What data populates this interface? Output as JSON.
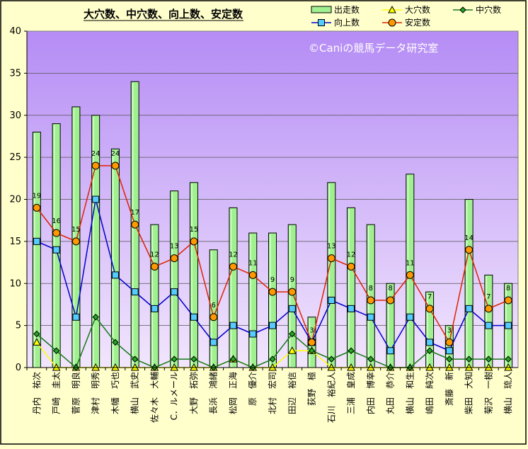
{
  "chart_data": {
    "type": "bar",
    "title": "大穴数、中穴数、向上数、安定数",
    "watermark": "©Caniの競馬データ研究室",
    "ylim": [
      0,
      40
    ],
    "yticks": [
      "0",
      "5",
      "10",
      "15",
      "20",
      "25",
      "30",
      "35",
      "40"
    ],
    "grid": true,
    "legend_position": "top-right",
    "categories": [
      "丹内　祐次",
      "戸崎　圭太",
      "菅原　明良",
      "津村　明秀",
      "木幡　巧也",
      "横山　武史",
      "佐々木　大輔",
      "C．ルメール",
      "大野　拓弥",
      "長浜　鴻緒",
      "松岡　正海",
      "原　優介",
      "北村　宏司",
      "田辺　裕信",
      "荻野　極",
      "石川　裕紀人",
      "三浦　皇成",
      "内田　博幸",
      "丸田　恭介",
      "横山　和生",
      "嶋田　純次",
      "斎藤　新",
      "柴田　大知",
      "菊沢　一樹",
      "横山　琉人"
    ],
    "series": [
      {
        "name": "出走数",
        "kind": "bar",
        "color": "#A0F090",
        "values": [
          28,
          29,
          31,
          30,
          26,
          34,
          17,
          21,
          22,
          14,
          19,
          16,
          16,
          17,
          6,
          22,
          19,
          17,
          10,
          23,
          9,
          5,
          20,
          11,
          10
        ]
      },
      {
        "name": "大穴数",
        "kind": "line",
        "color": "#FFFF00",
        "values": [
          3,
          0,
          0,
          0,
          0,
          0,
          0,
          0,
          0,
          0,
          1,
          0,
          0,
          2,
          2,
          0,
          0,
          0,
          0,
          0,
          0,
          0,
          0,
          0,
          0
        ]
      },
      {
        "name": "中穴数",
        "kind": "line",
        "color": "#1A7A1A",
        "values": [
          4,
          2,
          0,
          6,
          3,
          1,
          0,
          1,
          1,
          0,
          1,
          0,
          1,
          4,
          2,
          1,
          2,
          1,
          0,
          0,
          2,
          1,
          1,
          1,
          1
        ]
      },
      {
        "name": "向上数",
        "kind": "line",
        "color": "#0000CC",
        "values": [
          15,
          14,
          6,
          20,
          11,
          9,
          7,
          9,
          6,
          3,
          5,
          4,
          5,
          7,
          3,
          8,
          7,
          6,
          2,
          6,
          3,
          2,
          7,
          5,
          5
        ]
      },
      {
        "name": "安定数",
        "kind": "line",
        "color": "#DD2200",
        "values": [
          19,
          16,
          15,
          24,
          24,
          17,
          12,
          13,
          15,
          6,
          12,
          11,
          9,
          9,
          3,
          13,
          12,
          8,
          8,
          11,
          7,
          3,
          14,
          7,
          8
        ]
      }
    ],
    "data_labels_series": "安定数"
  }
}
